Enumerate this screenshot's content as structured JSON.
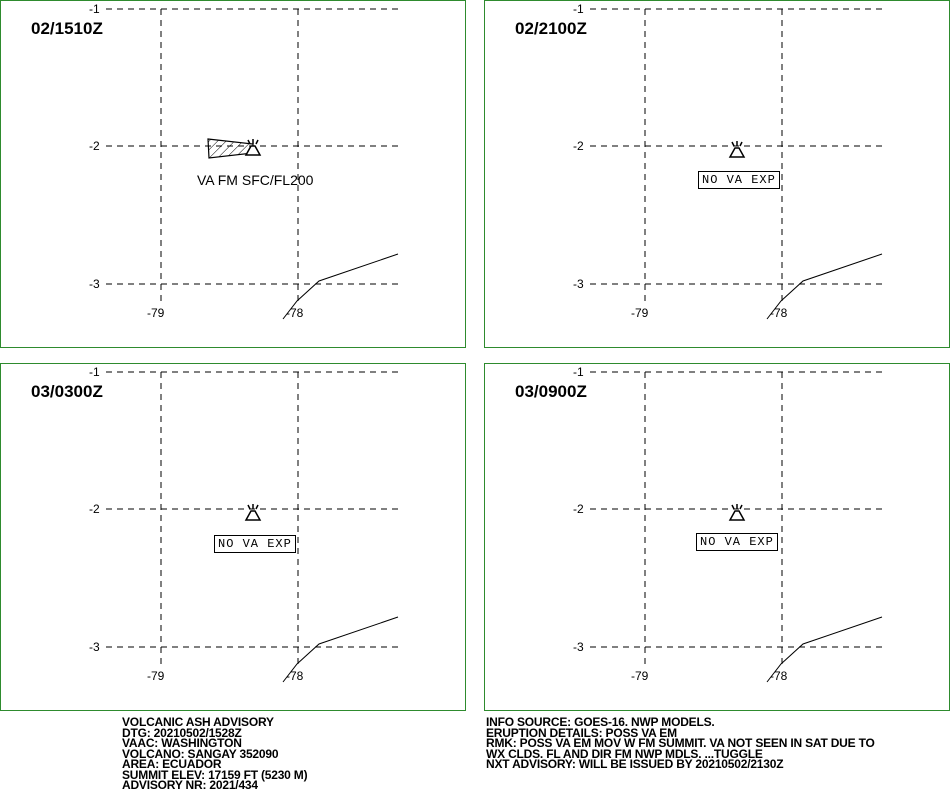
{
  "panels": [
    {
      "time": "02/1510Z",
      "lat_labels": [
        "-1",
        "-2",
        "-3"
      ],
      "lon_labels": [
        "-79",
        "-78"
      ],
      "va_text": "VA FM SFC/FL200",
      "no_va": ""
    },
    {
      "time": "02/2100Z",
      "lat_labels": [
        "-1",
        "-2",
        "-3"
      ],
      "lon_labels": [
        "-79",
        "-78"
      ],
      "va_text": "",
      "no_va": "NO VA EXP"
    },
    {
      "time": "03/0300Z",
      "lat_labels": [
        "-1",
        "-2",
        "-3"
      ],
      "lon_labels": [
        "-79",
        "-78"
      ],
      "va_text": "",
      "no_va": "NO VA EXP"
    },
    {
      "time": "03/0900Z",
      "lat_labels": [
        "-1",
        "-2",
        "-3"
      ],
      "lon_labels": [
        "-79",
        "-78"
      ],
      "va_text": "",
      "no_va": "NO VA EXP"
    }
  ],
  "advisory_left": [
    "VOLCANIC ASH ADVISORY",
    "DTG: 20210502/1528Z",
    "VAAC: WASHINGTON",
    "VOLCANO: SANGAY 352090",
    "AREA: ECUADOR",
    "SUMMIT ELEV: 17159 FT (5230 M)",
    "ADVISORY NR: 2021/434"
  ],
  "advisory_right": [
    "INFO SOURCE: GOES-16. NWP MODELS.",
    "ERUPTION DETAILS: POSS VA EM",
    "RMK: POSS VA EM MOV W FM SUMMIT. VA NOT SEEN IN SAT DUE TO",
    "WX CLDS. FL AND DIR FM NWP MDLS. ...TUGGLE",
    "NXT ADVISORY: WILL BE ISSUED BY 20210502/2130Z"
  ],
  "colors": {
    "panel_border": "#2e8b2e",
    "lines": "#000000"
  },
  "icons": [
    "volcano-icon"
  ]
}
